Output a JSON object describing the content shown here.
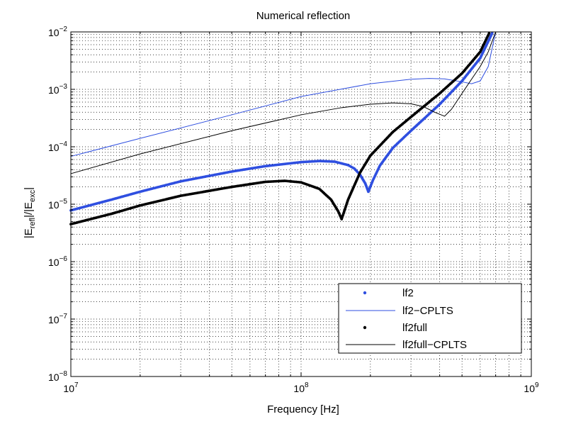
{
  "chart_data": {
    "type": "line",
    "title": "Numerical reflection",
    "xlabel": "Frequency [Hz]",
    "ylabel": {
      "base": "|E",
      "sub1": "refl",
      "mid": "|/|E",
      "sub2": "exc",
      "end": "|"
    },
    "xscale": "log",
    "yscale": "log",
    "xlim": [
      10000000,
      1000000000
    ],
    "ylim": [
      1e-08,
      0.01
    ],
    "grid": true,
    "legend_position": "bottom-right",
    "x_ticks": [
      {
        "value": 10000000,
        "base": "10",
        "exp": "7"
      },
      {
        "value": 100000000,
        "base": "10",
        "exp": "8"
      },
      {
        "value": 1000000000,
        "base": "10",
        "exp": "9"
      }
    ],
    "y_ticks": [
      {
        "value": 0.01,
        "base": "10",
        "exp": "−2"
      },
      {
        "value": 0.001,
        "base": "10",
        "exp": "−3"
      },
      {
        "value": 0.0001,
        "base": "10",
        "exp": "−4"
      },
      {
        "value": 1e-05,
        "base": "10",
        "exp": "−5"
      },
      {
        "value": 1e-06,
        "base": "10",
        "exp": "−6"
      },
      {
        "value": 1e-07,
        "base": "10",
        "exp": "−7"
      },
      {
        "value": 1e-08,
        "base": "10",
        "exp": "−8"
      }
    ],
    "series": [
      {
        "name": "lf2",
        "style": "dots",
        "color": "#2f4fe0",
        "x": [
          10000000,
          15000000,
          20000000,
          30000000,
          50000000,
          70000000,
          100000000,
          120000000,
          140000000,
          160000000,
          170000000,
          180000000,
          190000000,
          196000000,
          205000000,
          220000000,
          250000000,
          300000000,
          400000000,
          500000000,
          600000000,
          680000000
        ],
        "y": [
          7.8e-06,
          1.2e-05,
          1.65e-05,
          2.5e-05,
          3.7e-05,
          4.6e-05,
          5.4e-05,
          5.65e-05,
          5.5e-05,
          4.8e-05,
          4.2e-05,
          3.3e-05,
          2.3e-05,
          1.65e-05,
          2.6e-05,
          4.7e-05,
          9.5e-05,
          0.00019,
          0.00055,
          0.0014,
          0.0035,
          0.01
        ]
      },
      {
        "name": "lf2−CPLTS",
        "style": "line",
        "color": "#2f4fe0",
        "x": [
          10000000,
          20000000,
          50000000,
          100000000,
          200000000,
          300000000,
          360000000,
          420000000,
          500000000,
          550000000,
          600000000,
          650000000,
          700000000
        ],
        "y": [
          6.8e-05,
          0.00014,
          0.00036,
          0.00075,
          0.00125,
          0.0015,
          0.00155,
          0.00152,
          0.00135,
          0.00125,
          0.0014,
          0.0025,
          0.01
        ]
      },
      {
        "name": "lf2full",
        "style": "dots",
        "color": "#000000",
        "x": [
          10000000,
          15000000,
          20000000,
          30000000,
          50000000,
          70000000,
          85000000,
          100000000,
          120000000,
          135000000,
          145000000,
          150000000,
          160000000,
          180000000,
          200000000,
          250000000,
          300000000,
          400000000,
          500000000,
          600000000,
          660000000
        ],
        "y": [
          4.5e-06,
          6.8e-06,
          9.5e-06,
          1.4e-05,
          2e-05,
          2.45e-05,
          2.55e-05,
          2.4e-05,
          1.85e-05,
          1.2e-05,
          7.5e-06,
          5.5e-06,
          1.2e-05,
          3.5e-05,
          7e-05,
          0.00018,
          0.00033,
          0.00085,
          0.0019,
          0.0045,
          0.01
        ]
      },
      {
        "name": "lf2full−CPLTS",
        "style": "line",
        "color": "#000000",
        "x": [
          10000000,
          20000000,
          50000000,
          100000000,
          150000000,
          200000000,
          250000000,
          300000000,
          340000000,
          380000000,
          420000000,
          450000000,
          500000000,
          550000000,
          600000000,
          650000000,
          700000000
        ],
        "y": [
          3.4e-05,
          7.5e-05,
          0.00019,
          0.00036,
          0.00048,
          0.00055,
          0.00058,
          0.00056,
          0.0005,
          0.0004,
          0.00034,
          0.00045,
          0.00085,
          0.0015,
          0.0025,
          0.0045,
          0.01
        ]
      }
    ]
  }
}
